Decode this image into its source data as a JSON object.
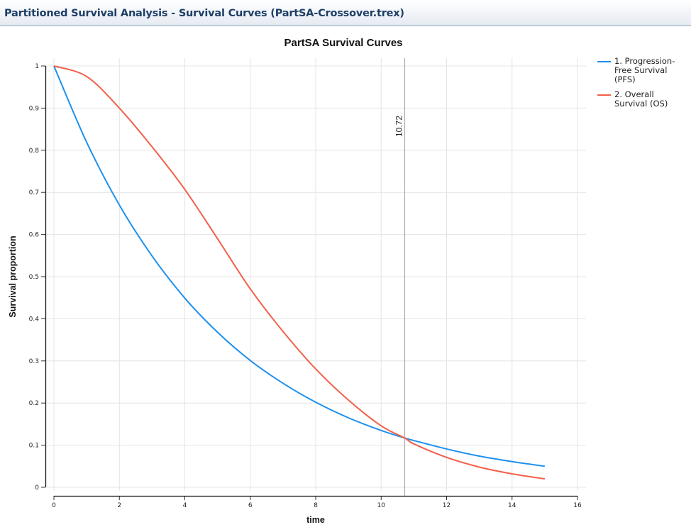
{
  "window": {
    "title": "Partitioned Survival Analysis - Survival Curves (PartSA-Crossover.trex)"
  },
  "colors": {
    "pfs": "#1e90ee",
    "os": "#f2604a",
    "marker": "#aaaaaa",
    "grid": "#e4e4e4",
    "header_text": "#1d3f66"
  },
  "legend": {
    "items": [
      {
        "label": "1. Progression-Free Survival (PFS)",
        "color": "#1e90ee"
      },
      {
        "label": "2. Overall Survival (OS)",
        "color": "#f2604a"
      }
    ]
  },
  "marker": {
    "x": 10.72,
    "label": "10.72"
  },
  "chart_data": {
    "type": "line",
    "title": "PartSA Survival Curves",
    "xlabel": "time",
    "ylabel": "Survival proportion",
    "xlim": [
      0,
      16
    ],
    "ylim": [
      0,
      1
    ],
    "xticks": [
      0,
      2,
      4,
      6,
      8,
      10,
      12,
      14,
      16
    ],
    "yticks": [
      0,
      0.1,
      0.2,
      0.3,
      0.4,
      0.5,
      0.6,
      0.7,
      0.8,
      0.9,
      1
    ],
    "grid": true,
    "legend_position": "right",
    "vertical_marker": 10.72,
    "x": [
      0,
      1,
      2,
      3,
      4,
      5,
      6,
      7,
      8,
      9,
      10,
      10.72,
      11,
      12,
      13,
      14,
      15
    ],
    "series": [
      {
        "name": "1. Progression-Free Survival (PFS)",
        "values": [
          1.0,
          0.819,
          0.67,
          0.549,
          0.449,
          0.368,
          0.301,
          0.247,
          0.202,
          0.165,
          0.135,
          0.117,
          0.111,
          0.091,
          0.074,
          0.061,
          0.05
        ]
      },
      {
        "name": "2. Overall Survival (OS)",
        "values": [
          1.0,
          0.975,
          0.9,
          0.808,
          0.707,
          0.59,
          0.471,
          0.37,
          0.281,
          0.207,
          0.146,
          0.117,
          0.103,
          0.071,
          0.048,
          0.032,
          0.02
        ]
      }
    ]
  }
}
